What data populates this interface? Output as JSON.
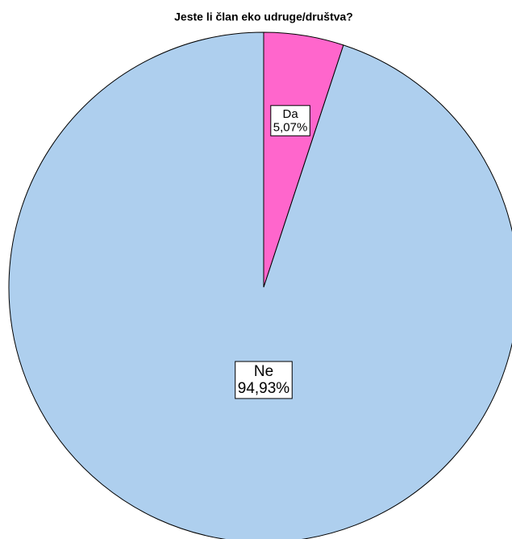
{
  "chart_data": {
    "type": "pie",
    "title": "Jeste li član eko udruge/društva?",
    "categories": [
      "Da",
      "Ne"
    ],
    "values": [
      5.07,
      94.93
    ],
    "value_labels": [
      "5,07%",
      "94,93%"
    ],
    "colors": [
      "#ff66cc",
      "#aecfee"
    ]
  }
}
